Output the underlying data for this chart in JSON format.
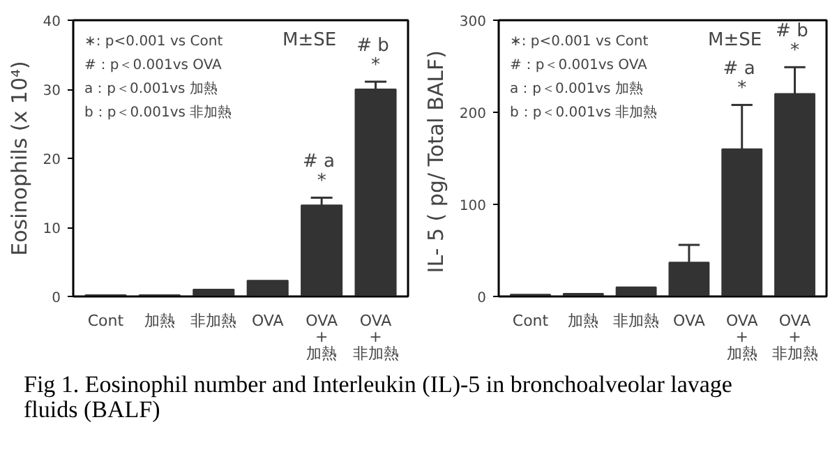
{
  "chart_data": [
    {
      "type": "bar",
      "ylabel": "Eosinophils (x 10⁴)",
      "categories": [
        "Cont",
        "加熱",
        "非加熱",
        "OVA",
        "OVA\n+\n加熱",
        "OVA\n+\n非加熱"
      ],
      "values": [
        0.2,
        0.2,
        1.0,
        2.3,
        13.2,
        30.0
      ],
      "errors": [
        null,
        null,
        null,
        null,
        1.1,
        1.1
      ],
      "color": "#333333",
      "ylim": [
        0,
        40
      ],
      "yticks": [
        0,
        10,
        20,
        30,
        40
      ],
      "grid": false,
      "annotations": [
        "∗: p<0.001 vs Cont",
        "#：p＜0.001vs  OVA",
        "a：p＜0.001vs 加熱",
        "b：p＜0.001vs 非加熱",
        "M±SE",
        "*",
        "#  a",
        "*",
        "#  b",
        "Fig 1. Eosinophil number and Interleukin (IL)-5 in bronchoalveolar lavage fluids (BALF)"
      ]
    },
    {
      "type": "bar",
      "ylabel": "IL- 5 ( pg/ Total  BALF)",
      "categories": [
        "Cont",
        "加熱",
        "非加熱",
        "OVA",
        "OVA\n+\n加熱",
        "OVA\n+\n非加熱"
      ],
      "values": [
        2,
        3,
        10,
        37,
        160,
        220
      ],
      "errors": [
        null,
        null,
        null,
        19,
        48,
        29
      ],
      "color": "#333333",
      "ylim": [
        0,
        300
      ],
      "yticks": [
        0,
        100,
        200,
        300
      ],
      "grid": false,
      "annotations": [
        "∗: p<0.001 vs Cont",
        "#：p＜0.001vs  OVA",
        "a：p＜0.001vs 加熱",
        "b：p＜0.001vs 非加熱",
        "M±SE",
        "*",
        "#  a",
        "*",
        "#  b"
      ]
    }
  ]
}
